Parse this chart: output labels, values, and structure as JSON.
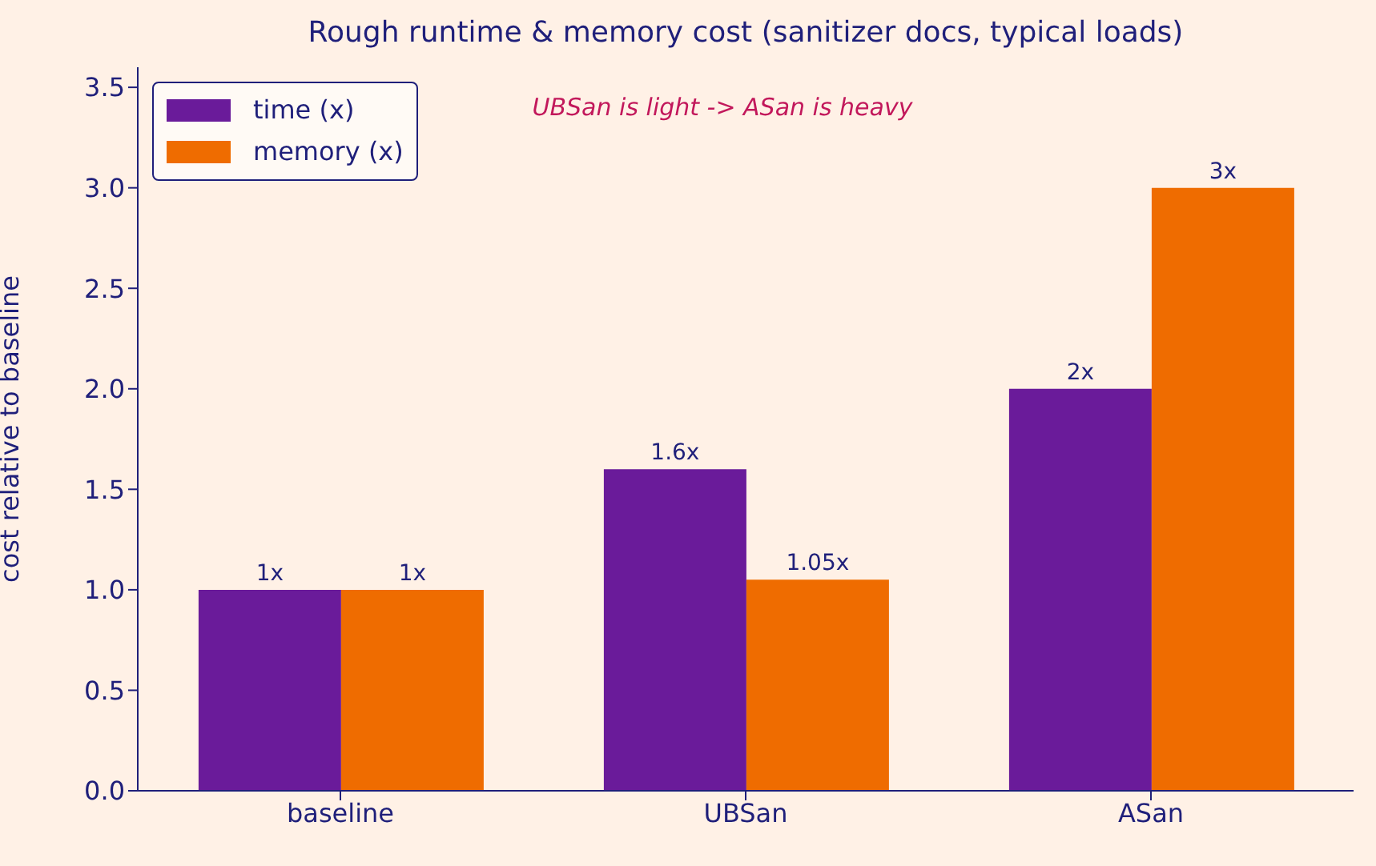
{
  "chart_data": {
    "type": "bar",
    "title": "Rough runtime & memory cost (sanitizer docs, typical loads)",
    "ylabel": "cost relative to baseline",
    "annotations": [
      "UBSan is light -> ASan is heavy"
    ],
    "categories": [
      "baseline",
      "UBSan",
      "ASan"
    ],
    "series": [
      {
        "name": "time (x)",
        "color": "#6a1b9a",
        "values": [
          1,
          1.6,
          2
        ],
        "value_labels": [
          "1x",
          "1.6x",
          "2x"
        ]
      },
      {
        "name": "memory (x)",
        "color": "#ef6c00",
        "values": [
          1,
          1.05,
          3
        ],
        "value_labels": [
          "1x",
          "1.05x",
          "3x"
        ]
      }
    ],
    "ylim": [
      0,
      3.6
    ],
    "yticks": [
      {
        "value": 0,
        "label": "0.0"
      },
      {
        "value": 0.5,
        "label": "0.5"
      },
      {
        "value": 1,
        "label": "1.0"
      },
      {
        "value": 1.5,
        "label": "1.5"
      },
      {
        "value": 2,
        "label": "2.0"
      },
      {
        "value": 2.5,
        "label": "2.5"
      },
      {
        "value": 3,
        "label": "3.0"
      },
      {
        "value": 3.5,
        "label": "3.5"
      }
    ],
    "grid": false,
    "legend": "top left"
  }
}
